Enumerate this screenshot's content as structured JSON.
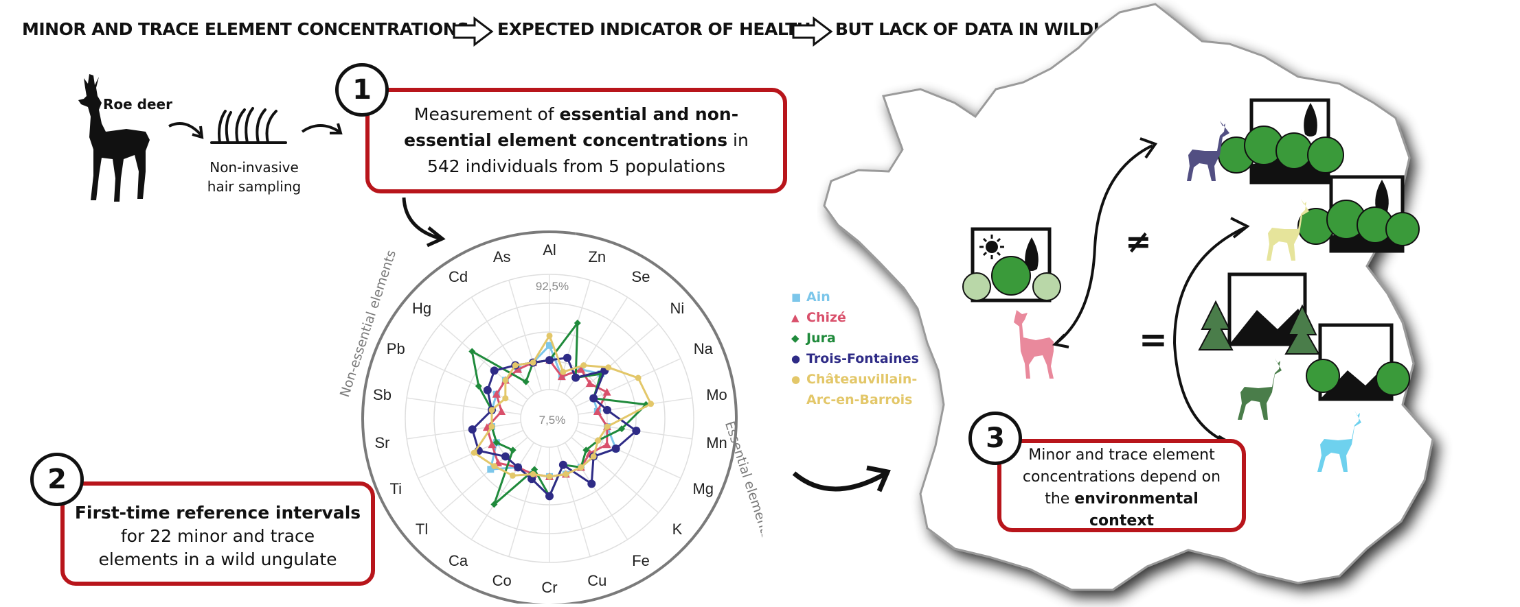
{
  "header": {
    "part1": "MINOR AND TRACE ELEMENT CONCENTRATIONS",
    "part2": "EXPECTED INDICATOR OF HEALTH",
    "part3": "BUT LACK OF DATA IN WILDLIFE"
  },
  "sampling": {
    "species_label": "Roe deer",
    "method_line1": "Non-invasive",
    "method_line2": "hair sampling"
  },
  "step1": {
    "number": "1",
    "text_a": "Measurement of ",
    "text_b": "essential and non-essential element concentrations",
    "text_c": " in 542 individuals from 5 populations"
  },
  "step2": {
    "number": "2",
    "bold_line": "First-time reference intervals",
    "line2": "for 22 minor and trace",
    "line3": "elements in a wild ungulate"
  },
  "step3": {
    "number": "3",
    "text_a": "Minor and trace element concentrations depend on the ",
    "text_b": "environmental context"
  },
  "map": {
    "neq_symbol": "≠",
    "eq_symbol": "="
  },
  "chart_data": {
    "type": "radar",
    "axes": [
      "Al",
      "Zn",
      "Se",
      "Ni",
      "Na",
      "Mo",
      "Mn",
      "Mg",
      "K",
      "Fe",
      "Cu",
      "Cr",
      "Co",
      "Ca",
      "Tl",
      "Ti",
      "Sr",
      "Sb",
      "Pb",
      "Hg",
      "Cd",
      "As"
    ],
    "rlim_labels": {
      "outer": "92,5%",
      "inner": "7,5%"
    },
    "groups": [
      {
        "label": "Essential elements",
        "axes": [
          "Zn",
          "Se",
          "Ni",
          "Na",
          "Mo",
          "Mn",
          "Mg",
          "K",
          "Fe",
          "Cu",
          "Cr",
          "Co",
          "Ca"
        ]
      },
      {
        "label": "Non-essential elements",
        "axes": [
          "Tl",
          "Ti",
          "Sr",
          "Sb",
          "Pb",
          "Hg",
          "Cd",
          "As",
          "Al"
        ]
      }
    ],
    "series": [
      {
        "name": "Ain",
        "color": "#7cc6ea",
        "marker": "square",
        "values": [
          0.45,
          0.15,
          0.3,
          0.4,
          0.2,
          0.2,
          0.3,
          0.45,
          0.3,
          0.3,
          0.3,
          0.3,
          0.3,
          0.3,
          0.5,
          0.3,
          0.3,
          0.3,
          0.3,
          0.3,
          0.3,
          0.3
        ]
      },
      {
        "name": "Chizé",
        "color": "#d9506b",
        "marker": "triangle",
        "values": [
          0.3,
          0.15,
          0.3,
          0.25,
          0.35,
          0.2,
          0.3,
          0.35,
          0.25,
          0.3,
          0.3,
          0.3,
          0.3,
          0.3,
          0.4,
          0.35,
          0.35,
          0.2,
          0.3,
          0.3,
          0.3,
          0.3
        ]
      },
      {
        "name": "Jura",
        "color": "#1f8a3b",
        "marker": "diamond",
        "values": [
          0.3,
          0.72,
          0.2,
          0.4,
          0.2,
          0.7,
          0.45,
          0.25,
          0.2,
          0.3,
          0.2,
          0.5,
          0.25,
          0.75,
          0.2,
          0.3,
          0.3,
          0.3,
          0.5,
          0.75,
          0.15,
          0.3
        ]
      },
      {
        "name": "Trois-Fontaines",
        "color": "#2e2b86",
        "marker": "circle",
        "values": [
          0.3,
          0.35,
          0.2,
          0.45,
          0.2,
          0.3,
          0.6,
          0.45,
          0.3,
          0.5,
          0.2,
          0.5,
          0.35,
          0.3,
          0.3,
          0.5,
          0.5,
          0.3,
          0.4,
          0.45,
          0.35,
          0.3
        ]
      },
      {
        "name": "Châteauvillain-Arc-en-Barrois",
        "color": "#e3c769",
        "marker": "circle",
        "values": [
          0.55,
          0.2,
          0.35,
          0.5,
          0.7,
          0.75,
          0.3,
          0.25,
          0.3,
          0.3,
          0.3,
          0.3,
          0.3,
          0.4,
          0.45,
          0.55,
          0.3,
          0.3,
          0.2,
          0.3,
          0.35,
          0.3
        ]
      }
    ]
  },
  "colors": {
    "box_border": "#b8151b",
    "map_gray": "#9a9a9a",
    "deer_purple": "#524f82",
    "deer_yellow": "#e6e49b",
    "deer_pink": "#e9899c",
    "deer_green": "#4a7d4a",
    "deer_blue": "#6ed1ee",
    "tree_green": "#3a9a3a",
    "tree_light": "#b9d7a8"
  }
}
